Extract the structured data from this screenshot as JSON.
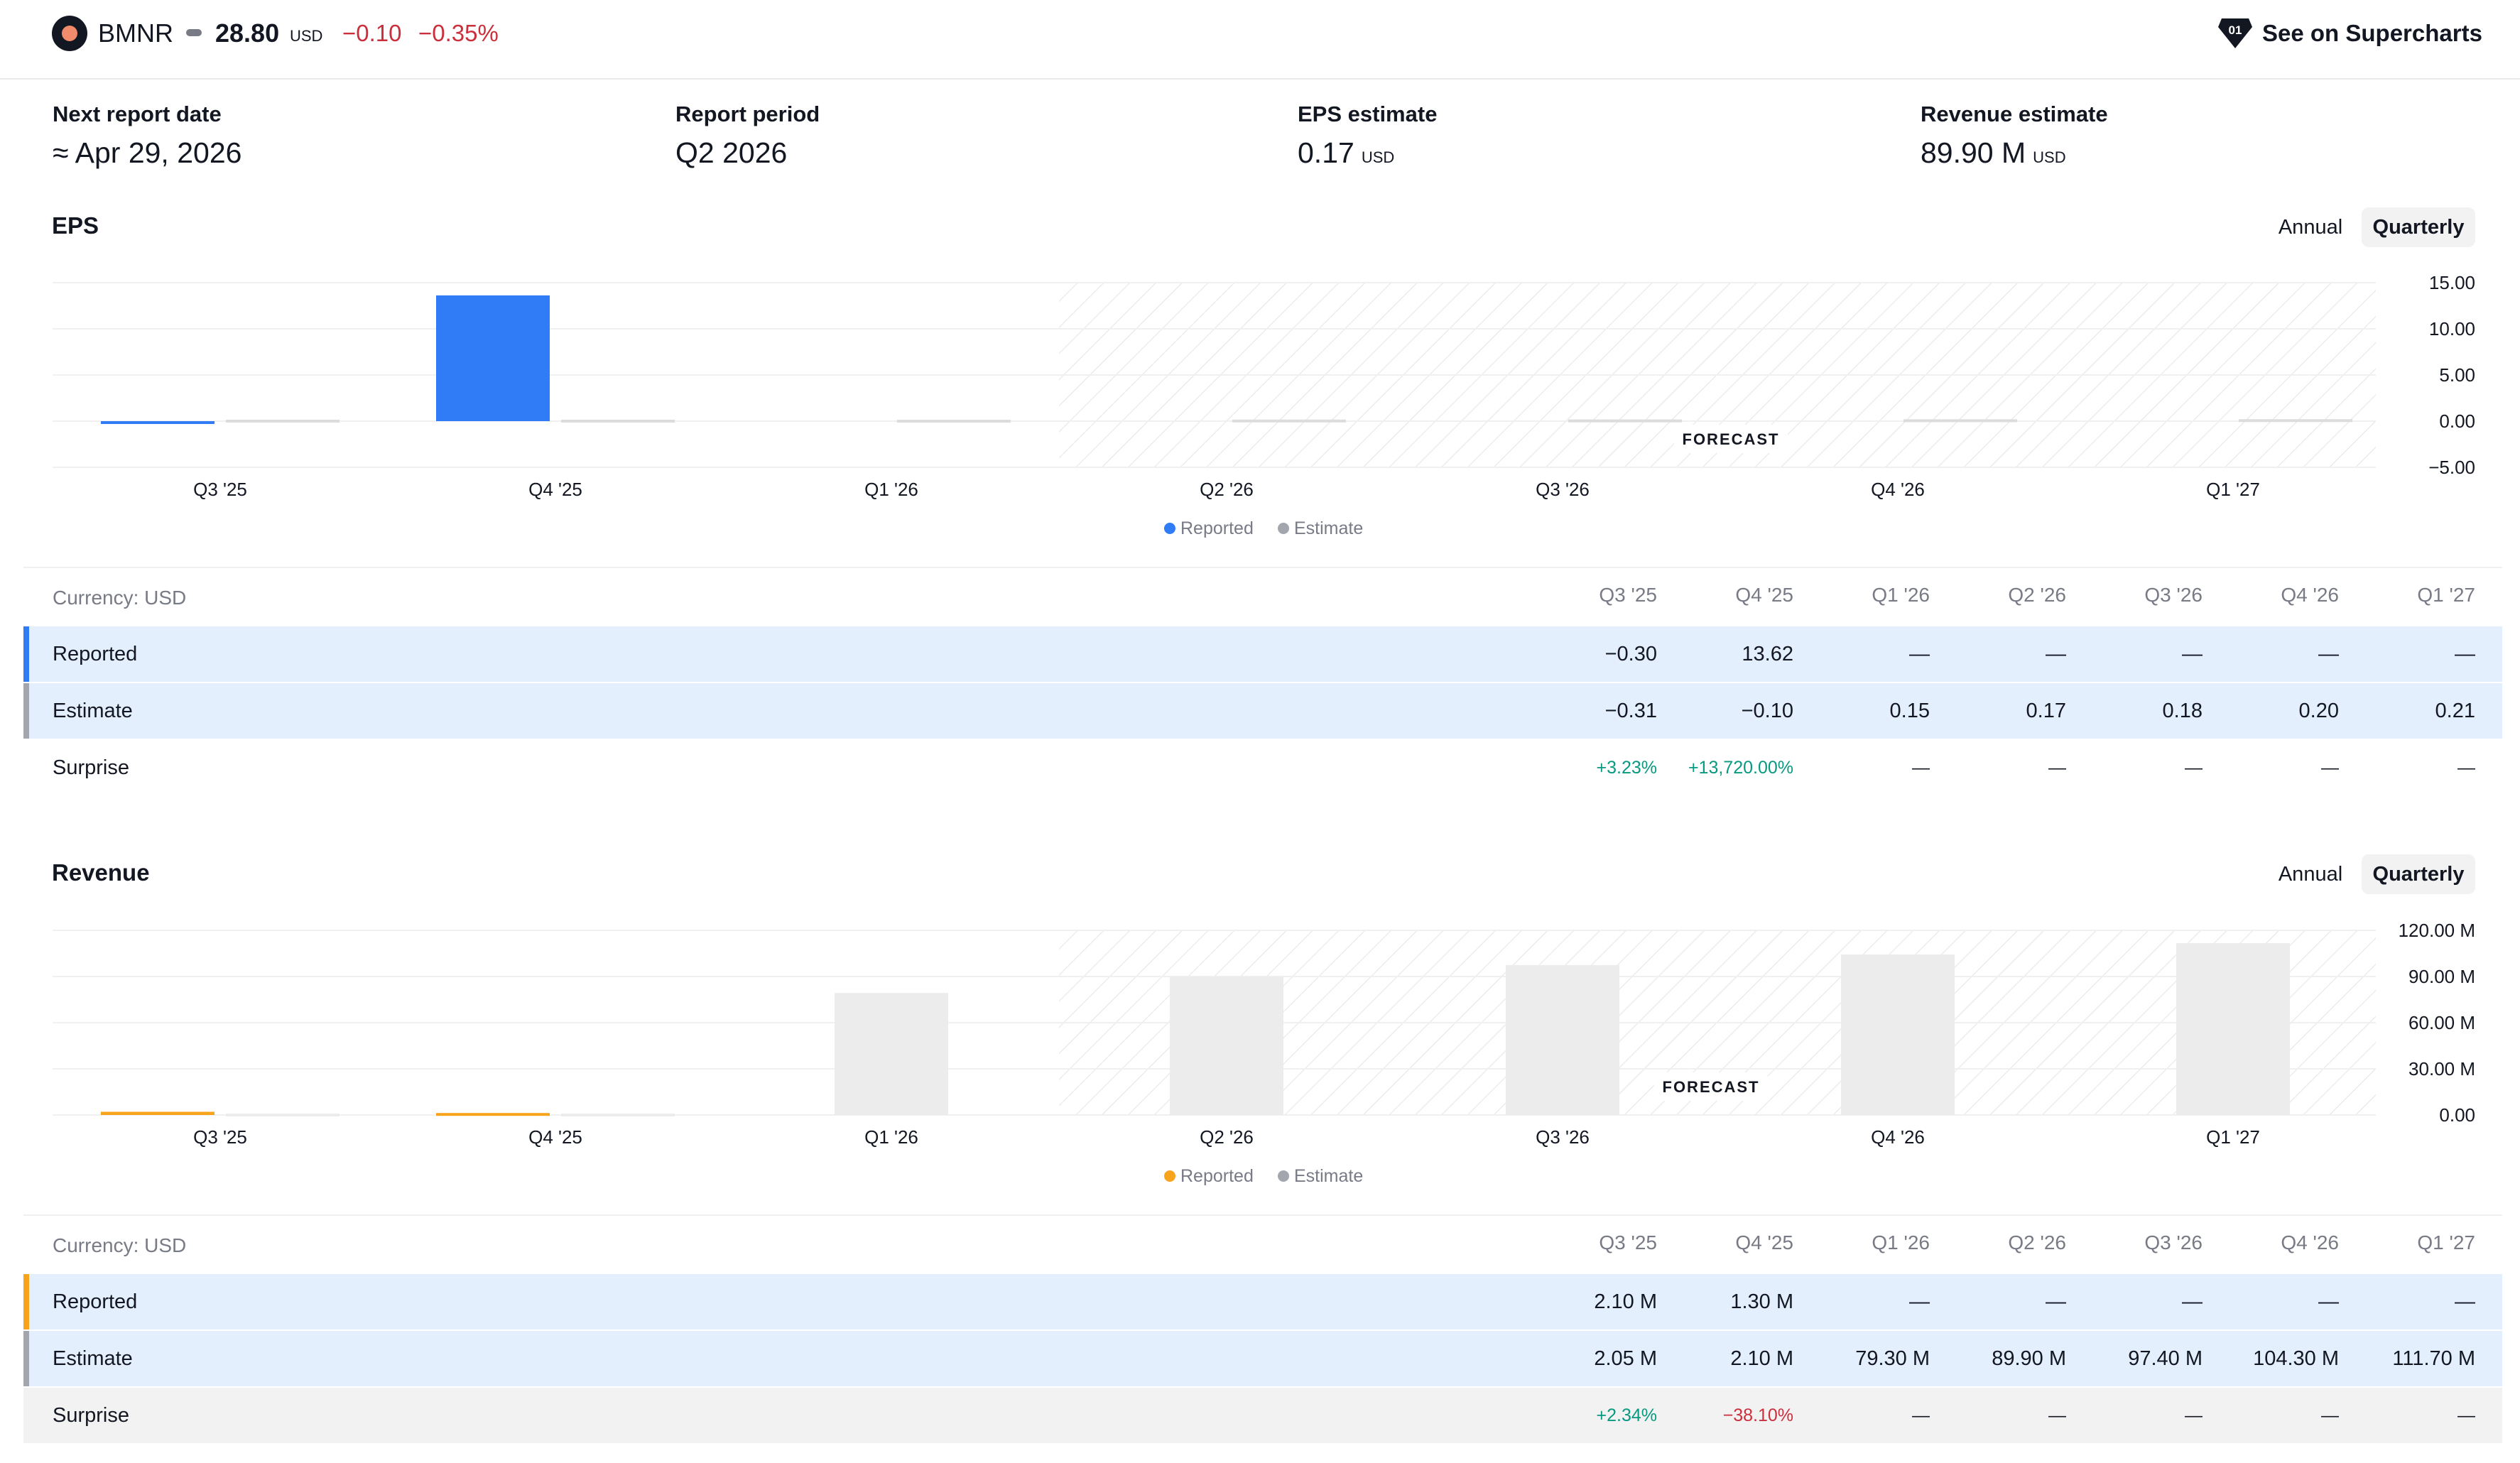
{
  "header": {
    "ticker": "BMNR",
    "price": "28.80",
    "price_unit": "USD",
    "change": "−0.10",
    "change_pct": "−0.35%",
    "supercharts_label": "See on Supercharts",
    "colors": {
      "negative": "#cc2f3c",
      "positive": "#089981"
    }
  },
  "summary": [
    {
      "label": "Next report date",
      "value": "≈ Apr 29, 2026",
      "unit": ""
    },
    {
      "label": "Report period",
      "value": "Q2 2026",
      "unit": ""
    },
    {
      "label": "EPS estimate",
      "value": "0.17",
      "unit": "USD"
    },
    {
      "label": "Revenue estimate",
      "value": "89.90 M",
      "unit": "USD"
    }
  ],
  "toggle": {
    "annual": "Annual",
    "quarterly": "Quarterly",
    "selected": "Quarterly"
  },
  "eps": {
    "title": "EPS",
    "currency": "Currency: USD",
    "columns": [
      "Q3 '25",
      "Q4 '25",
      "Q1 '26",
      "Q2 '26",
      "Q3 '26",
      "Q4 '26",
      "Q1 '27"
    ],
    "rows": [
      {
        "label": "Reported",
        "values": [
          "−0.30",
          "13.62",
          "—",
          "—",
          "—",
          "—",
          "—"
        ]
      },
      {
        "label": "Estimate",
        "values": [
          "−0.31",
          "−0.10",
          "0.15",
          "0.17",
          "0.18",
          "0.20",
          "0.21"
        ]
      },
      {
        "label": "Surprise",
        "values": [
          "+3.23%",
          "+13,720.00%",
          "—",
          "—",
          "—",
          "—",
          "—"
        ]
      }
    ]
  },
  "revenue": {
    "title": "Revenue",
    "currency": "Currency: USD",
    "columns": [
      "Q3 '25",
      "Q4 '25",
      "Q1 '26",
      "Q2 '26",
      "Q3 '26",
      "Q4 '26",
      "Q1 '27"
    ],
    "rows": [
      {
        "label": "Reported",
        "values": [
          "2.10 M",
          "1.30 M",
          "—",
          "—",
          "—",
          "—",
          "—"
        ]
      },
      {
        "label": "Estimate",
        "values": [
          "2.05 M",
          "2.10 M",
          "79.30 M",
          "89.90 M",
          "97.40 M",
          "104.30 M",
          "111.70 M"
        ]
      },
      {
        "label": "Surprise",
        "values": [
          "+2.34%",
          "−38.10%",
          "—",
          "—",
          "—",
          "—",
          "—"
        ]
      }
    ]
  },
  "chart_data": [
    {
      "type": "bar",
      "categories": [
        "Q3 '25",
        "Q4 '25",
        "Q1 '26",
        "Q2 '26",
        "Q3 '26",
        "Q4 '26",
        "Q1 '27"
      ],
      "series": [
        {
          "name": "Reported",
          "color": "#2f7cf6",
          "values": [
            -0.3,
            13.62,
            null,
            null,
            null,
            null,
            null
          ]
        },
        {
          "name": "Estimate",
          "color": "#dcdcdc",
          "values": [
            -0.31,
            -0.1,
            0.15,
            0.17,
            0.18,
            0.2,
            0.21
          ]
        }
      ],
      "yticks": [
        "15.00",
        "10.00",
        "5.00",
        "0.00",
        "−5.00"
      ],
      "ylim": [
        -5,
        15
      ],
      "forecast_label": "FORECAST",
      "forecast_from": "Q2 '26",
      "legend": [
        "Reported",
        "Estimate"
      ],
      "legend_position": "bottom"
    },
    {
      "type": "bar",
      "categories": [
        "Q3 '25",
        "Q4 '25",
        "Q1 '26",
        "Q2 '26",
        "Q3 '26",
        "Q4 '26",
        "Q1 '27"
      ],
      "series": [
        {
          "name": "Reported",
          "color": "#f7a31c",
          "values": [
            2.1,
            1.3,
            null,
            null,
            null,
            null,
            null
          ]
        },
        {
          "name": "Estimate",
          "color": "#ececec",
          "values": [
            2.05,
            2.1,
            79.3,
            89.9,
            97.4,
            104.3,
            111.7
          ]
        }
      ],
      "yticks": [
        "120.00 M",
        "90.00 M",
        "60.00 M",
        "30.00 M",
        "0.00"
      ],
      "ylim": [
        0,
        120
      ],
      "forecast_label": "FORECAST",
      "forecast_from": "Q2 '26",
      "legend": [
        "Reported",
        "Estimate"
      ],
      "legend_position": "bottom"
    }
  ]
}
